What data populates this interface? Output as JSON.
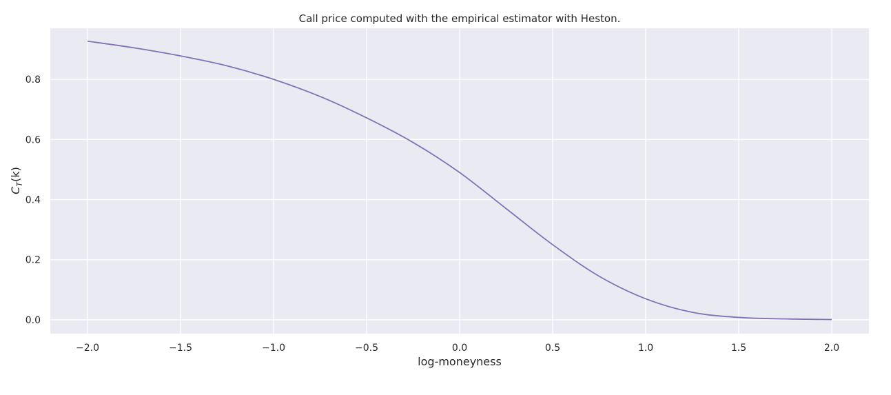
{
  "chart_data": {
    "type": "line",
    "title": "Call price computed with the empirical estimator with Heston.",
    "xlabel": "log-moneyness",
    "ylabel_main": "C",
    "ylabel_sub": "T",
    "ylabel_rest": "(k)",
    "xlim": [
      -2.2,
      2.2
    ],
    "ylim": [
      -0.046,
      0.97
    ],
    "xticks": [
      -2.0,
      -1.5,
      -1.0,
      -0.5,
      0.0,
      0.5,
      1.0,
      1.5,
      2.0
    ],
    "xtick_labels": [
      "−2.0",
      "−1.5",
      "−1.0",
      "−0.5",
      "0.0",
      "0.5",
      "1.0",
      "1.5",
      "2.0"
    ],
    "yticks": [
      0.0,
      0.2,
      0.4,
      0.6,
      0.8
    ],
    "ytick_labels": [
      "0.0",
      "0.2",
      "0.4",
      "0.6",
      "0.8"
    ],
    "grid": true,
    "background": "#eaeaf2",
    "grid_color": "#ffffff",
    "line_color": "#8172b3",
    "series": [
      {
        "x": [
          -2.0,
          -1.75,
          -1.5,
          -1.25,
          -1.0,
          -0.75,
          -0.5,
          -0.25,
          0.0,
          0.25,
          0.5,
          0.75,
          1.0,
          1.25,
          1.5,
          1.75,
          2.0
        ],
        "y": [
          0.927,
          0.905,
          0.878,
          0.845,
          0.8,
          0.743,
          0.672,
          0.59,
          0.49,
          0.37,
          0.25,
          0.145,
          0.07,
          0.025,
          0.008,
          0.003,
          0.001
        ]
      }
    ]
  }
}
